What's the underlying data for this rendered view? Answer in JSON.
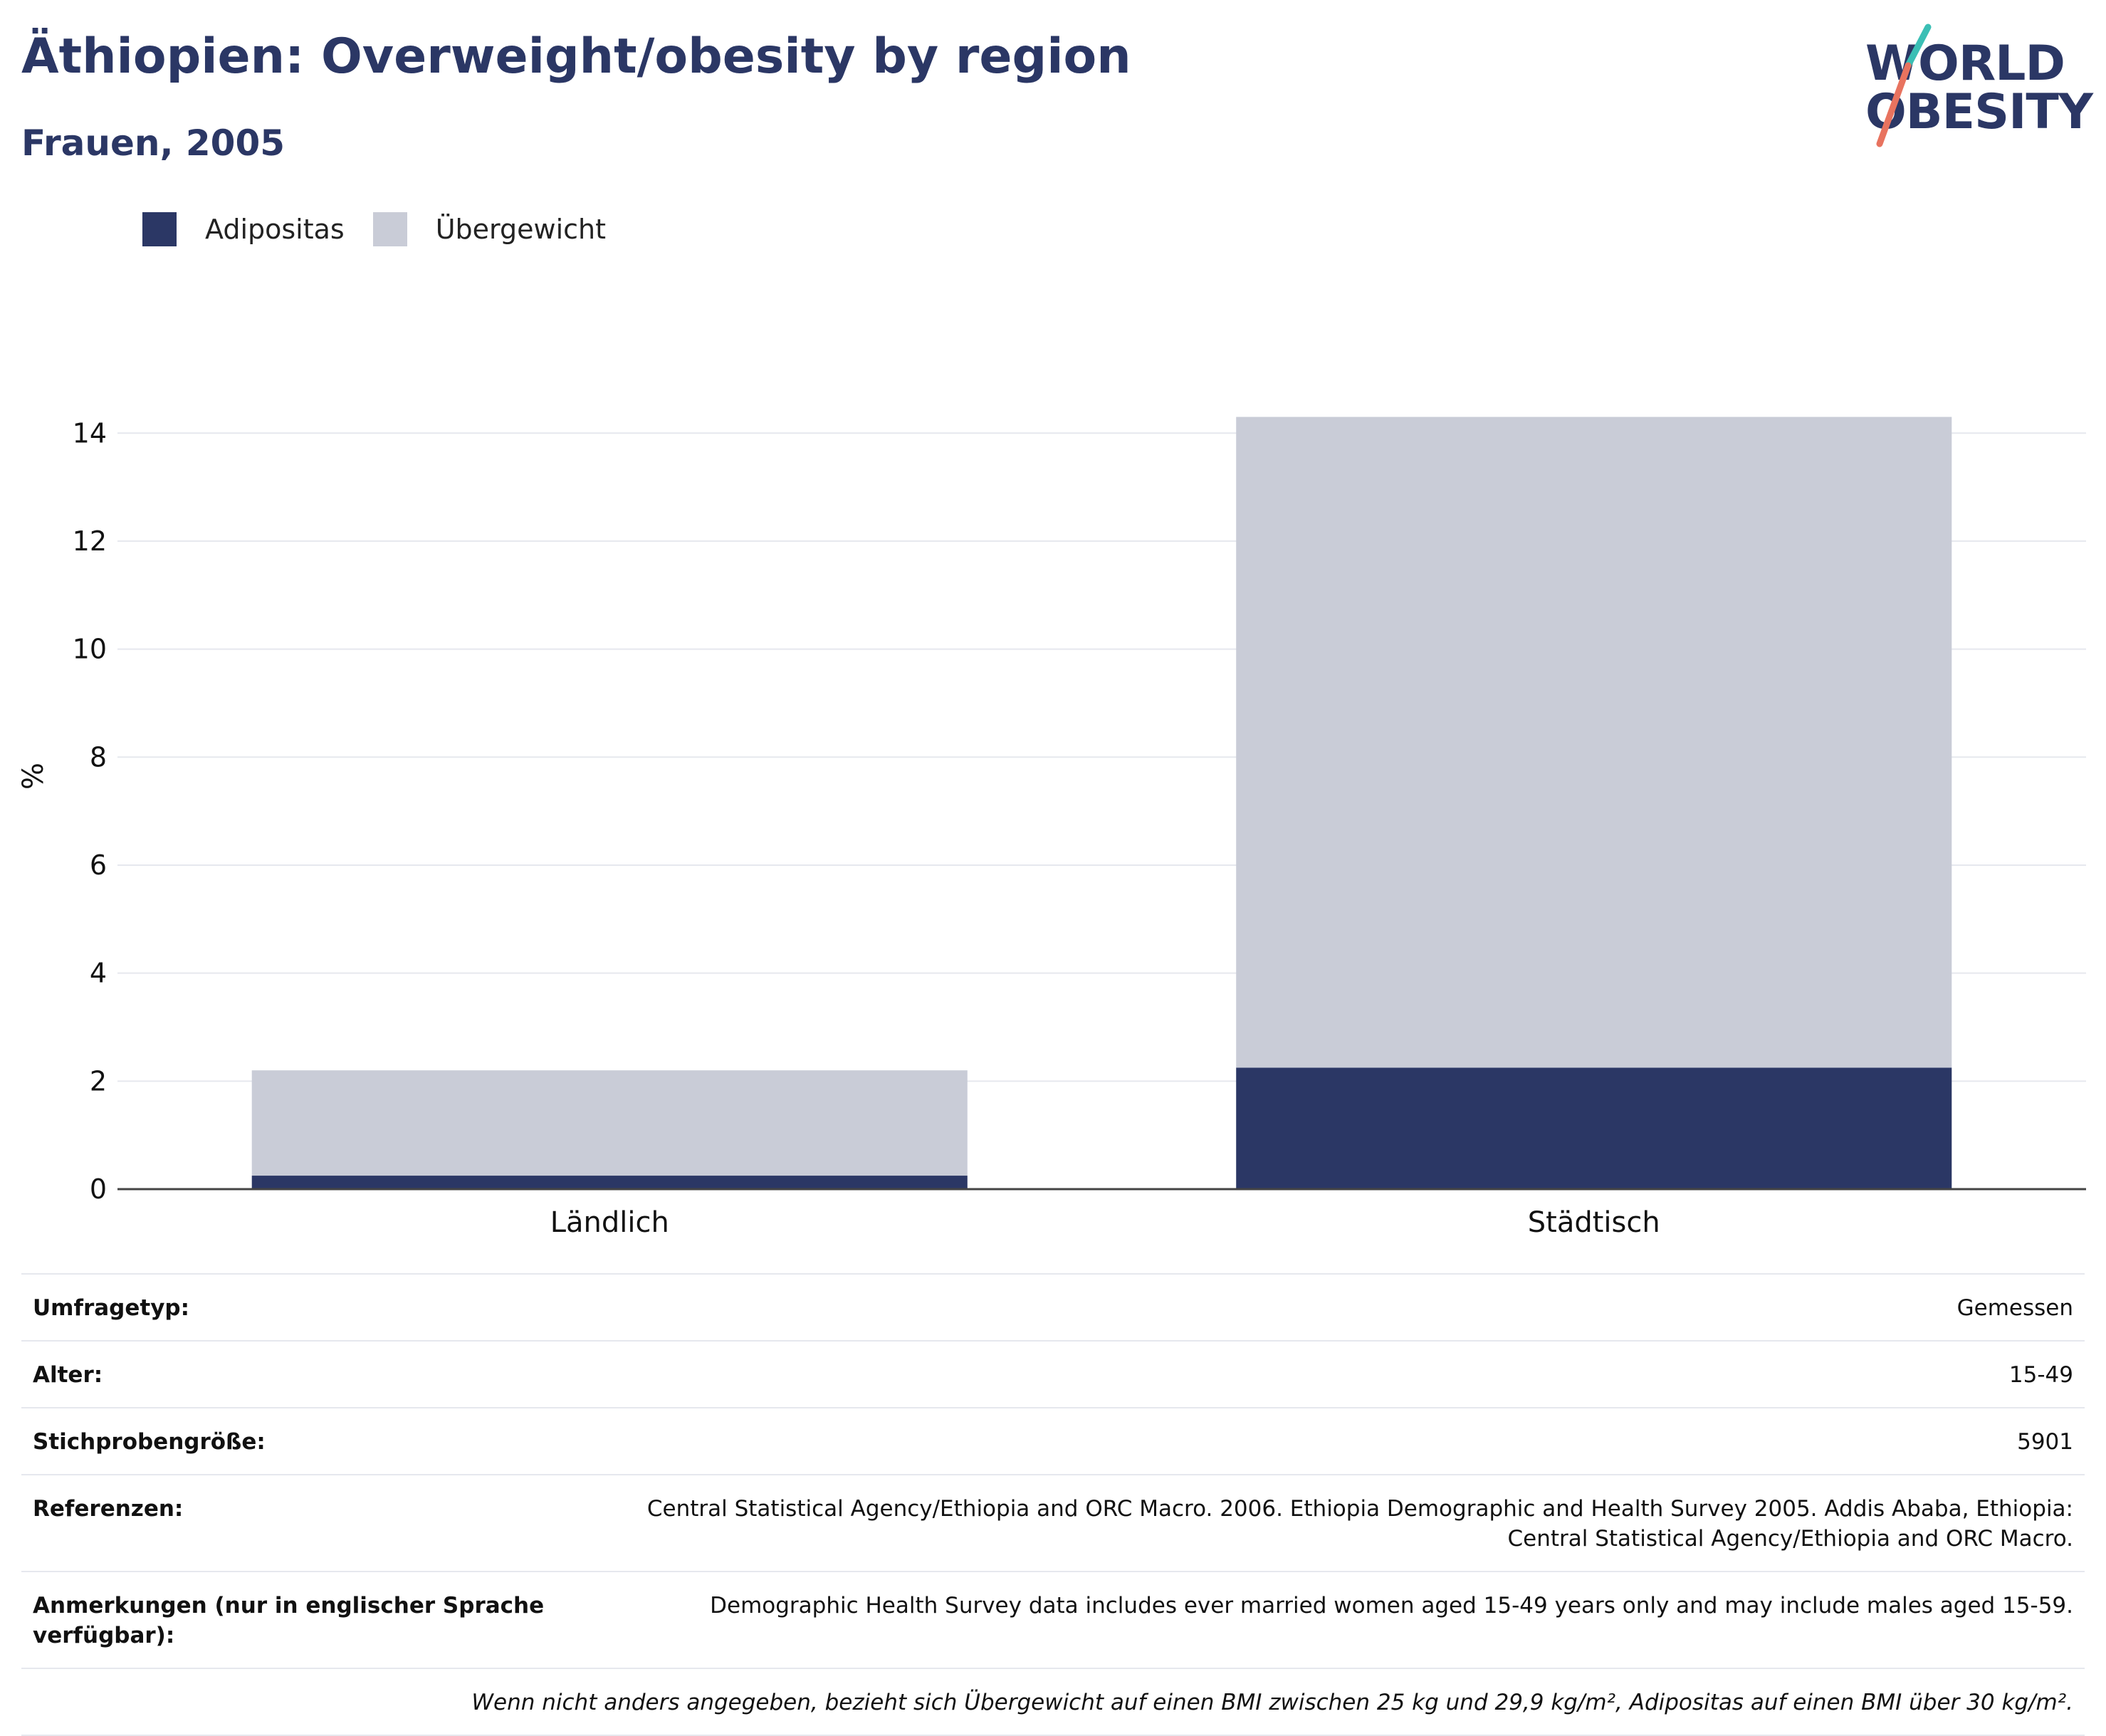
{
  "header": {
    "title": "Äthiopien: Overweight/obesity by region",
    "subtitle": "Frauen, 2005"
  },
  "logo": {
    "line1": "WORLD",
    "line2": "OBESITY",
    "colors": {
      "text": "#2b3765",
      "slash_top": "#3bbfb5",
      "slash_bottom": "#e8735f"
    }
  },
  "legend": [
    {
      "label": "Adipositas",
      "color": "#2b3765"
    },
    {
      "label": "Übergewicht",
      "color": "#c9ccd7"
    }
  ],
  "chart_data": {
    "type": "bar",
    "stacked": true,
    "categories": [
      "Ländlich",
      "Städtisch"
    ],
    "series": [
      {
        "name": "Adipositas",
        "color": "#2b3765",
        "values": [
          0.25,
          2.25
        ]
      },
      {
        "name": "Übergewicht",
        "color": "#c9ccd7",
        "values": [
          1.95,
          12.05
        ]
      }
    ],
    "ylabel": "%",
    "xlabel": "",
    "ylim": [
      0,
      14.9
    ],
    "yticks": [
      0,
      2,
      4,
      6,
      8,
      10,
      12,
      14
    ],
    "grid": true,
    "legend_position": "top-left"
  },
  "info": {
    "rows": [
      {
        "label": "Umfragetyp:",
        "value": "Gemessen"
      },
      {
        "label": "Alter:",
        "value": "15-49"
      },
      {
        "label": "Stichprobengröße:",
        "value": "5901"
      },
      {
        "label": "Referenzen:",
        "value": "Central Statistical Agency/Ethiopia and ORC Macro. 2006. Ethiopia Demographic and Health Survey 2005. Addis Ababa, Ethiopia: Central Statistical Agency/Ethiopia and ORC Macro."
      },
      {
        "label": "Anmerkungen (nur in englischer Sprache verfügbar):",
        "value": "Demographic Health Survey data includes ever married women aged 15-49 years only and may include males aged 15-59."
      }
    ],
    "footnote": "Wenn nicht anders angegeben, bezieht sich Übergewicht auf einen BMI zwischen 25 kg und 29,9 kg/m², Adipositas auf einen BMI über 30 kg/m²."
  }
}
